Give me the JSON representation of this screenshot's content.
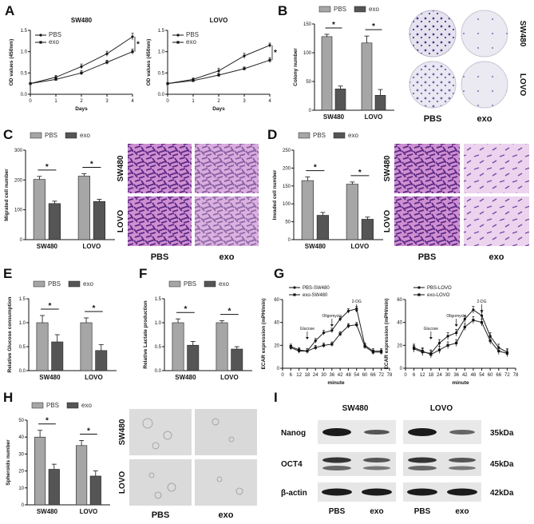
{
  "colors": {
    "pbs": "#a6a6a6",
    "exo": "#555555",
    "line": "#222222",
    "stain": "#5b3f99",
    "well": "#eceaf2"
  },
  "panels": {
    "A": {
      "label": "A"
    },
    "B": {
      "label": "B"
    },
    "C": {
      "label": "C"
    },
    "D": {
      "label": "D"
    },
    "E": {
      "label": "E"
    },
    "F": {
      "label": "F"
    },
    "G": {
      "label": "G"
    },
    "H": {
      "label": "H"
    },
    "I": {
      "label": "I"
    }
  },
  "images": {
    "colony": {
      "rows": [
        "SW480",
        "LOVO"
      ],
      "cols": [
        "PBS",
        "exo"
      ]
    },
    "migration": {
      "rows": [
        "SW480",
        "LOVO"
      ],
      "cols": [
        "PBS",
        "exo"
      ]
    },
    "invasion": {
      "rows": [
        "SW480",
        "LOVO"
      ],
      "cols": [
        "PBS",
        "exo"
      ]
    },
    "spheroid": {
      "rows": [
        "SW480",
        "LOVO"
      ],
      "cols": [
        "PBS",
        "exo"
      ]
    }
  },
  "western": {
    "groups": [
      "SW480",
      "LOVO"
    ],
    "proteins": [
      "Nanog",
      "OCT4",
      "β-actin"
    ],
    "sizes": [
      "35kDa",
      "45kDa",
      "42kDa"
    ],
    "lanes": [
      "PBS",
      "exo",
      "PBS",
      "exo"
    ]
  },
  "chart_data": [
    {
      "id": "A1",
      "type": "line",
      "title": "SW480",
      "xlabel": "Days",
      "ylabel": "OD values (450nm)",
      "x": [
        0,
        1,
        2,
        3,
        4
      ],
      "xlim": [
        0,
        4
      ],
      "ylim": [
        0.0,
        1.5
      ],
      "yticks": [
        "0.0",
        "0.5",
        "1.0",
        "1.5"
      ],
      "series": [
        {
          "name": "PBS",
          "values": [
            0.25,
            0.4,
            0.65,
            0.95,
            1.35
          ],
          "err": [
            0.02,
            0.04,
            0.06,
            0.06,
            0.08
          ]
        },
        {
          "name": "exo",
          "values": [
            0.25,
            0.35,
            0.5,
            0.75,
            1.0
          ],
          "err": [
            0.02,
            0.03,
            0.05,
            0.05,
            0.06
          ]
        }
      ],
      "annotations": [
        "*"
      ]
    },
    {
      "id": "A2",
      "type": "line",
      "title": "LOVO",
      "xlabel": "Days",
      "ylabel": "OD values (450nm)",
      "x": [
        0,
        1,
        2,
        3,
        4
      ],
      "xlim": [
        0,
        4
      ],
      "ylim": [
        0.0,
        1.5
      ],
      "yticks": [
        "0.0",
        "0.5",
        "1.0",
        "1.5"
      ],
      "series": [
        {
          "name": "PBS",
          "values": [
            0.25,
            0.35,
            0.55,
            0.9,
            1.15
          ],
          "err": [
            0.02,
            0.03,
            0.06,
            0.06,
            0.05
          ]
        },
        {
          "name": "exo",
          "values": [
            0.25,
            0.32,
            0.45,
            0.6,
            0.8
          ],
          "err": [
            0.02,
            0.03,
            0.04,
            0.04,
            0.06
          ]
        }
      ],
      "annotations": [
        "*"
      ]
    },
    {
      "id": "B",
      "type": "bar",
      "ylabel": "Colony number",
      "categories": [
        "SW480",
        "LOVO"
      ],
      "ylim": [
        0,
        150
      ],
      "yticks": [
        "0",
        "50",
        "100",
        "150"
      ],
      "series": [
        {
          "name": "PBS",
          "values": [
            128,
            117
          ],
          "err": [
            4,
            12
          ]
        },
        {
          "name": "exo",
          "values": [
            37,
            26
          ],
          "err": [
            5,
            10
          ]
        }
      ],
      "annotations": [
        "*",
        "*"
      ]
    },
    {
      "id": "C",
      "type": "bar",
      "ylabel": "Migrated cell number",
      "categories": [
        "SW480",
        "LOVO"
      ],
      "ylim": [
        0,
        300
      ],
      "yticks": [
        "0",
        "100",
        "200",
        "300"
      ],
      "series": [
        {
          "name": "PBS",
          "values": [
            202,
            213
          ],
          "err": [
            10,
            8
          ]
        },
        {
          "name": "exo",
          "values": [
            121,
            128
          ],
          "err": [
            8,
            7
          ]
        }
      ],
      "annotations": [
        "*",
        "*"
      ]
    },
    {
      "id": "D",
      "type": "bar",
      "ylabel": "Invaded cell number",
      "categories": [
        "SW480",
        "LOVO"
      ],
      "ylim": [
        0,
        250
      ],
      "yticks": [
        "0",
        "50",
        "100",
        "150",
        "200",
        "250"
      ],
      "series": [
        {
          "name": "PBS",
          "values": [
            165,
            155
          ],
          "err": [
            10,
            6
          ]
        },
        {
          "name": "exo",
          "values": [
            68,
            57
          ],
          "err": [
            8,
            6
          ]
        }
      ],
      "annotations": [
        "*",
        "*"
      ]
    },
    {
      "id": "E",
      "type": "bar",
      "ylabel": "Relative Glucose consumption",
      "categories": [
        "SW480",
        "LOVO"
      ],
      "ylim": [
        0,
        1.5
      ],
      "yticks": [
        "0.0",
        "0.5",
        "1.0",
        "1.5"
      ],
      "series": [
        {
          "name": "PBS",
          "values": [
            1.0,
            1.0
          ],
          "err": [
            0.15,
            0.1
          ]
        },
        {
          "name": "exo",
          "values": [
            0.6,
            0.42
          ],
          "err": [
            0.15,
            0.12
          ]
        }
      ],
      "annotations": [
        "*",
        "*"
      ]
    },
    {
      "id": "F",
      "type": "bar",
      "ylabel": "Relative Lactate production",
      "categories": [
        "SW480",
        "LOVO"
      ],
      "ylim": [
        0,
        1.5
      ],
      "yticks": [
        "0.0",
        "0.5",
        "1.0",
        "1.5"
      ],
      "series": [
        {
          "name": "PBS",
          "values": [
            1.0,
            1.0
          ],
          "err": [
            0.08,
            0.04
          ]
        },
        {
          "name": "exo",
          "values": [
            0.53,
            0.45
          ],
          "err": [
            0.08,
            0.05
          ]
        }
      ],
      "annotations": [
        "*",
        "*"
      ]
    },
    {
      "id": "G1",
      "type": "line",
      "xlabel": "minute",
      "ylabel": "ECAR expression (mPH/min)",
      "x": [
        6,
        12,
        18,
        24,
        30,
        36,
        42,
        48,
        54,
        60,
        66,
        72
      ],
      "xlim": [
        0,
        78
      ],
      "ylim": [
        0,
        60
      ],
      "xticks": [
        "0",
        "6",
        "12",
        "18",
        "24",
        "30",
        "36",
        "42",
        "48",
        "54",
        "60",
        "66",
        "72",
        "78"
      ],
      "yticks": [
        "0",
        "20",
        "40",
        "60"
      ],
      "series": [
        {
          "name": "PBS-SW480",
          "values": [
            18,
            15,
            15,
            24,
            31,
            33,
            43,
            50,
            52,
            20,
            15,
            15
          ],
          "err": [
            2,
            2,
            2,
            2,
            2,
            2,
            2,
            2,
            2,
            2,
            2,
            2
          ]
        },
        {
          "name": "exo-SW480",
          "values": [
            19,
            16,
            15,
            18,
            20,
            21,
            30,
            37,
            38,
            19,
            14,
            14
          ],
          "err": [
            2,
            2,
            2,
            2,
            2,
            2,
            2,
            2,
            2,
            2,
            2,
            2
          ]
        }
      ],
      "annotations": [
        "Glucose",
        "Oligomycin",
        "2-DG"
      ]
    },
    {
      "id": "G2",
      "type": "line",
      "xlabel": "minute",
      "ylabel": "ECAR expression (mPH/min)",
      "x": [
        6,
        12,
        18,
        24,
        30,
        36,
        42,
        48,
        54,
        60,
        66,
        72
      ],
      "xlim": [
        0,
        78
      ],
      "ylim": [
        0,
        60
      ],
      "xticks": [
        "0",
        "6",
        "12",
        "18",
        "24",
        "30",
        "36",
        "42",
        "48",
        "54",
        "60",
        "66",
        "72",
        "78"
      ],
      "yticks": [
        "0",
        "20",
        "40",
        "60"
      ],
      "series": [
        {
          "name": "PBS-LOVO",
          "values": [
            17,
            14,
            13,
            22,
            28,
            31,
            43,
            51,
            46,
            28,
            18,
            14
          ],
          "err": [
            3,
            3,
            3,
            3,
            3,
            3,
            3,
            3,
            3,
            3,
            3,
            3
          ]
        },
        {
          "name": "exo-LOVO",
          "values": [
            18,
            15,
            12,
            16,
            20,
            22,
            36,
            42,
            40,
            24,
            15,
            13
          ],
          "err": [
            3,
            3,
            3,
            3,
            3,
            3,
            3,
            3,
            3,
            3,
            3,
            3
          ]
        }
      ],
      "annotations": [
        "Glucose",
        "Oligomycin",
        "2-DG"
      ]
    },
    {
      "id": "H",
      "type": "bar",
      "ylabel": "Spheroids number",
      "categories": [
        "SW480",
        "LOVO"
      ],
      "ylim": [
        0,
        50
      ],
      "yticks": [
        "0",
        "10",
        "20",
        "30",
        "40",
        "50"
      ],
      "series": [
        {
          "name": "PBS",
          "values": [
            40,
            35
          ],
          "err": [
            4,
            3
          ]
        },
        {
          "name": "exo",
          "values": [
            21,
            17
          ],
          "err": [
            3,
            3
          ]
        }
      ],
      "annotations": [
        "*",
        "*"
      ]
    }
  ]
}
